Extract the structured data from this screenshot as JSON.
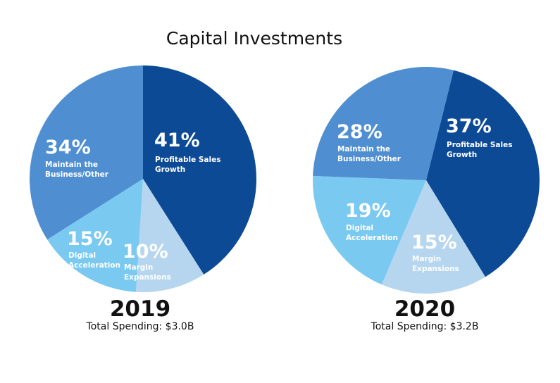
{
  "title": "Capital Investments",
  "chart_data": [
    {
      "type": "pie",
      "year": "2019",
      "total_label": "Total Spending: $3.0B",
      "slices": [
        {
          "label_lines": [
            "Profitable Sales",
            "Growth"
          ],
          "value": 41,
          "pct_label": "41%",
          "color": "#0d4a96"
        },
        {
          "label_lines": [
            "Margin",
            "Expansions"
          ],
          "value": 10,
          "pct_label": "10%",
          "color": "#b6d6f0"
        },
        {
          "label_lines": [
            "Digital",
            "Acceleration"
          ],
          "value": 15,
          "pct_label": "15%",
          "color": "#79c9f1"
        },
        {
          "label_lines": [
            "Maintain the",
            "Business/Other"
          ],
          "value": 34,
          "pct_label": "34%",
          "color": "#4f8fd1"
        }
      ]
    },
    {
      "type": "pie",
      "year": "2020",
      "total_label": "Total Spending: $3.2B",
      "slices": [
        {
          "label_lines": [
            "Profitable Sales",
            "Growth"
          ],
          "value": 37,
          "pct_label": "37%",
          "color": "#0d4a96"
        },
        {
          "label_lines": [
            "Margin",
            "Expansions"
          ],
          "value": 15,
          "pct_label": "15%",
          "color": "#b6d6f0"
        },
        {
          "label_lines": [
            "Digital",
            "Acceleration"
          ],
          "value": 19,
          "pct_label": "19%",
          "color": "#79c9f1"
        },
        {
          "label_lines": [
            "Maintain the",
            "Business/Other"
          ],
          "value": 28,
          "pct_label": "28%",
          "color": "#4f8fd1"
        }
      ]
    }
  ]
}
